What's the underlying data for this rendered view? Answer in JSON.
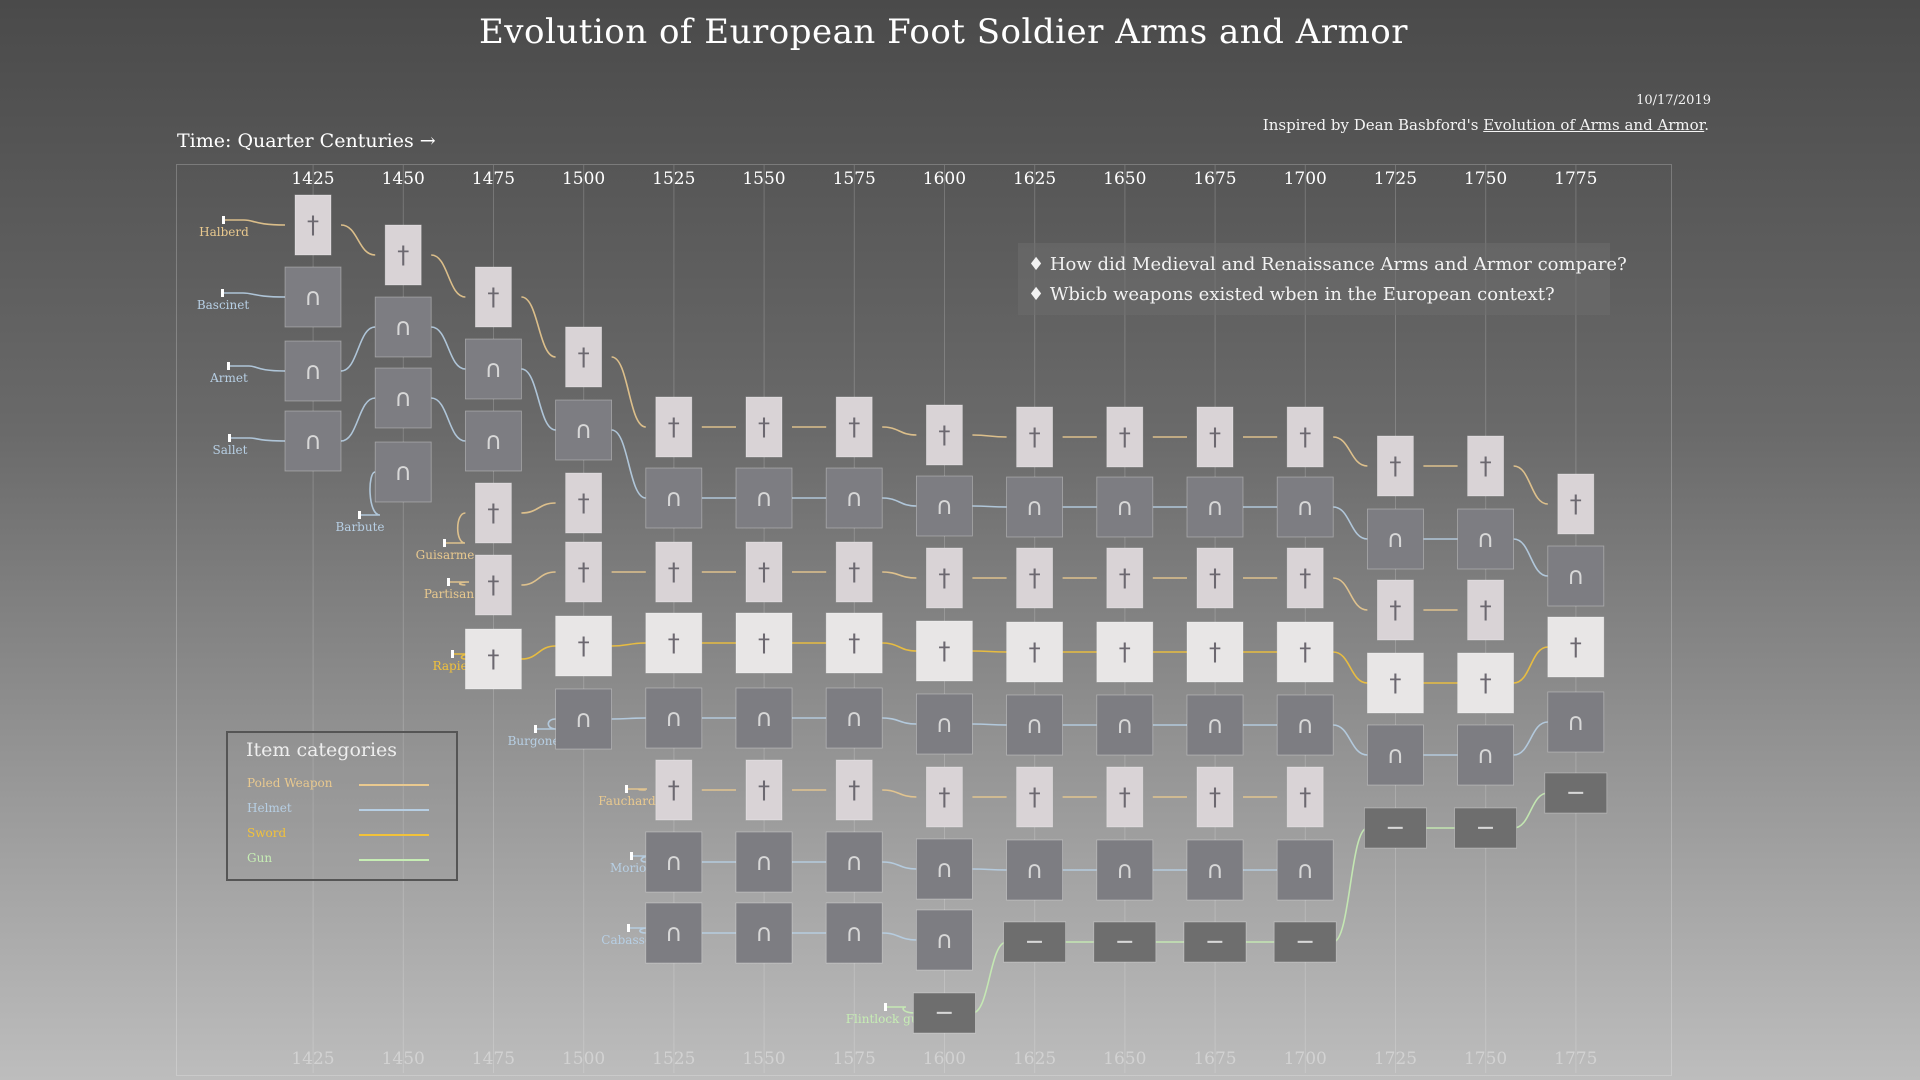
{
  "title": "Evolution of European Foot Soldier Arms and Armor",
  "date": "10/17/2019",
  "credit": {
    "prefix": "Inspired by Dean Basbford's ",
    "link_text": "Evolution of Arms and Armor",
    "suffix": "."
  },
  "time_label": "Time: Quarter Centuries →",
  "questions": [
    "♦ How did Medieval and Renaissance Arms and Armor compare?",
    "♦ Wbicb weapons existed wben in the European context?"
  ],
  "legend": {
    "title": "Item categories",
    "items": [
      {
        "label": "Poled Weapon",
        "color": "#e9c98f"
      },
      {
        "label": "Helmet",
        "color": "#b7cfe4"
      },
      {
        "label": "Sword",
        "color": "#f2c23a"
      },
      {
        "label": "Gun",
        "color": "#c6edb4"
      }
    ]
  },
  "colors": {
    "Poled Weapon": "#e9c98f",
    "Helmet": "#b7cfe4",
    "Sword": "#f2c23a",
    "Gun": "#c6edb4"
  },
  "chart_data": {
    "type": "timeline",
    "years": [
      1425,
      1450,
      1475,
      1500,
      1525,
      1550,
      1575,
      1600,
      1625,
      1650,
      1675,
      1700,
      1725,
      1750,
      1775
    ],
    "threads": [
      {
        "name": "Halberd",
        "category": "Poled Weapon",
        "start": 1425,
        "end": 1775
      },
      {
        "name": "Bascinet",
        "category": "Helmet",
        "start": 1425,
        "end": 1425
      },
      {
        "name": "Armet",
        "category": "Helmet",
        "start": 1425,
        "end": 1775
      },
      {
        "name": "Sallet",
        "category": "Helmet",
        "start": 1425,
        "end": 1475
      },
      {
        "name": "Barbute",
        "category": "Helmet",
        "start": 1450,
        "end": 1450
      },
      {
        "name": "Guisarme",
        "category": "Poled Weapon",
        "start": 1475,
        "end": 1500
      },
      {
        "name": "Partisan",
        "category": "Poled Weapon",
        "start": 1475,
        "end": 1750
      },
      {
        "name": "Rapier",
        "category": "Sword",
        "start": 1475,
        "end": 1775
      },
      {
        "name": "Burgonet",
        "category": "Helmet",
        "start": 1500,
        "end": 1775
      },
      {
        "name": "Fauchard",
        "category": "Poled Weapon",
        "start": 1525,
        "end": 1700
      },
      {
        "name": "Morion",
        "category": "Helmet",
        "start": 1525,
        "end": 1700
      },
      {
        "name": "Cabasset",
        "category": "Helmet",
        "start": 1525,
        "end": 1600
      },
      {
        "name": "Flintlock gun",
        "category": "Gun",
        "start": 1600,
        "end": 1775
      }
    ]
  }
}
